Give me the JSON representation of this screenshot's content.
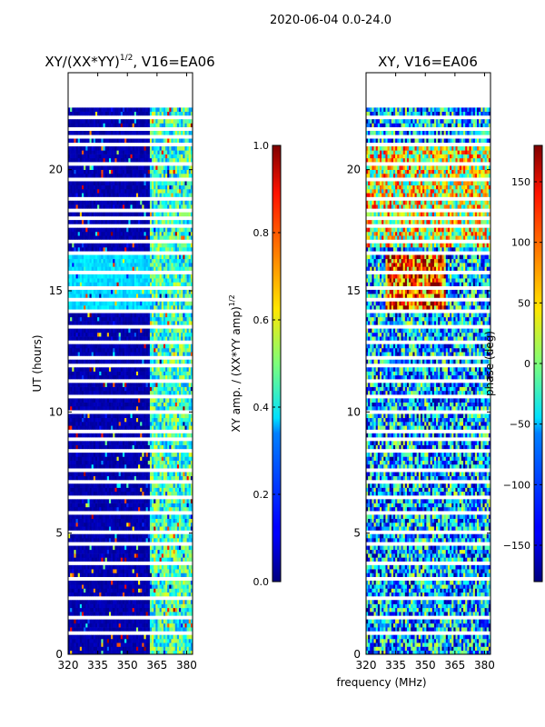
{
  "figure": {
    "suptitle": "2020-06-04 0.0-24.0",
    "xlabel_shared": "frequency (MHz)"
  },
  "chart_data": [
    {
      "type": "heatmap",
      "title": "XY/(XX*YY)",
      "title_sup": "1/2",
      "title_suffix": ", V16=EA06",
      "xlabel": "frequency (MHz)",
      "ylabel": "UT (hours)",
      "xlim": [
        320,
        383
      ],
      "ylim": [
        0,
        24
      ],
      "xticks": [
        320,
        335,
        350,
        365,
        380
      ],
      "yticks": [
        0,
        5,
        10,
        15,
        20
      ],
      "colorbar": {
        "label": "XY amp. / (XX*YY amp)",
        "label_sup": "1/2",
        "range": [
          0.0,
          1.0
        ],
        "ticks": [
          "0.0",
          "0.2",
          "0.4",
          "0.6",
          "0.8",
          "1.0"
        ],
        "colormap": "jet"
      }
    },
    {
      "type": "heatmap",
      "title": "XY, V16=EA06",
      "xlabel": "frequency (MHz)",
      "ylabel": "",
      "xlim": [
        320,
        383
      ],
      "ylim": [
        0,
        24
      ],
      "xticks": [
        320,
        335,
        350,
        365,
        380
      ],
      "yticks": [
        0,
        5,
        10,
        15,
        20
      ],
      "colorbar": {
        "label": "phase (deg)",
        "range": [
          -180,
          180
        ],
        "ticks": [
          "150",
          "100",
          "50",
          "0",
          "−50",
          "−100",
          "−150"
        ],
        "tick_values": [
          150,
          100,
          50,
          0,
          -50,
          -100,
          -150
        ],
        "colormap": "jet"
      }
    }
  ]
}
